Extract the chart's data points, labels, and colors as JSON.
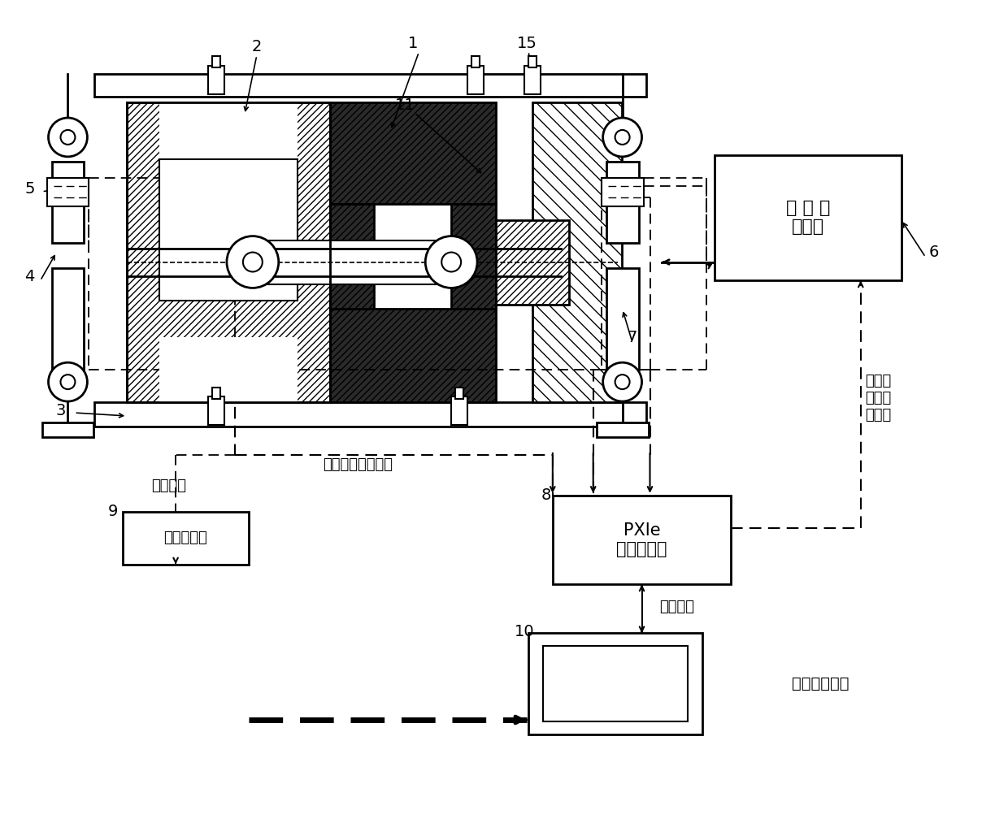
{
  "bg_color": "#ffffff",
  "fig_w": 12.4,
  "fig_h": 10.29,
  "dpi": 100,
  "text_servo": "伺 服 液\n压系统",
  "text_pxie": "PXIe\n实时控制器",
  "text_data": "数据采集器",
  "text_pc": "平板式工控机",
  "text_signal1": "标准力传感器信号",
  "text_signal2": "天平信号",
  "text_ethernet": "以太网线",
  "text_ehydro": "电液伺\n服阀调\n节信号"
}
